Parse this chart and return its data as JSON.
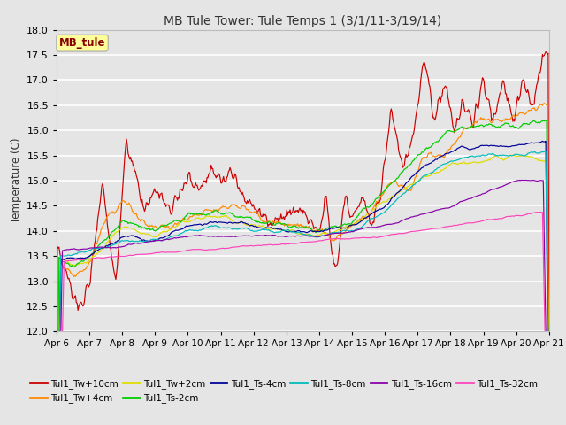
{
  "title": "MB Tule Tower: Tule Temps 1 (3/1/11-3/19/14)",
  "ylabel": "Temperature (C)",
  "ylim": [
    12.0,
    18.0
  ],
  "yticks": [
    12.0,
    12.5,
    13.0,
    13.5,
    14.0,
    14.5,
    15.0,
    15.5,
    16.0,
    16.5,
    17.0,
    17.5,
    18.0
  ],
  "xtick_labels": [
    "Apr 6",
    "Apr 7",
    "Apr 8",
    "Apr 9",
    "Apr 10",
    "Apr 11",
    "Apr 12",
    "Apr 13",
    "Apr 14",
    "Apr 15",
    "Apr 16",
    "Apr 17",
    "Apr 18",
    "Apr 19",
    "Apr 20",
    "Apr 21"
  ],
  "bg_color": "#e5e5e5",
  "grid_color": "#ffffff",
  "series_colors": {
    "Tul1_Tw+10cm": "#cc0000",
    "Tul1_Tw+4cm": "#ff8800",
    "Tul1_Tw+2cm": "#dddd00",
    "Tul1_Ts-2cm": "#00cc00",
    "Tul1_Ts-4cm": "#000099",
    "Tul1_Ts-8cm": "#00bbbb",
    "Tul1_Ts-16cm": "#8800aa",
    "Tul1_Ts-32cm": "#ff44bb"
  },
  "legend_label": "MB_tule",
  "legend_box_color": "#ffff99",
  "legend_text_color": "#880000",
  "n_points": 600
}
